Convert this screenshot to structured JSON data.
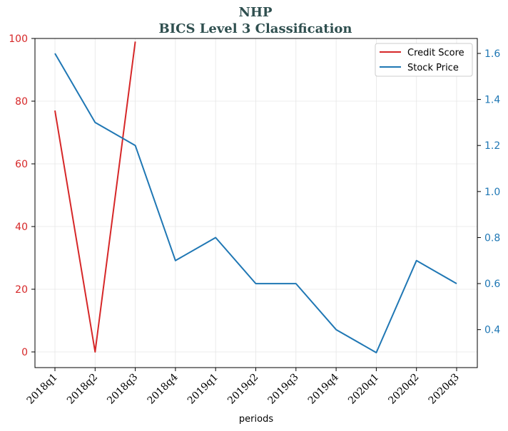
{
  "chart_data": {
    "type": "line",
    "title": "NHP",
    "subtitle": "BICS Level 3 Classification",
    "xlabel": "periods",
    "categories": [
      "2018q1",
      "2018q2",
      "2018q3",
      "2018q4",
      "2019q1",
      "2019q2",
      "2019q3",
      "2019q4",
      "2020q1",
      "2020q2",
      "2020q3"
    ],
    "series": [
      {
        "name": "Credit Score",
        "axis": "left",
        "color": "#d62728",
        "values": [
          77,
          0,
          99,
          null,
          null,
          null,
          null,
          null,
          null,
          null,
          null
        ]
      },
      {
        "name": "Stock Price",
        "axis": "right",
        "color": "#1f77b4",
        "values": [
          1.6,
          1.3,
          1.2,
          0.7,
          0.8,
          0.6,
          0.6,
          0.4,
          0.3,
          0.7,
          0.6
        ]
      }
    ],
    "y_left": {
      "ylim": [
        -5,
        100
      ],
      "ticks": [
        0,
        20,
        40,
        60,
        80,
        100
      ],
      "color": "#d62728"
    },
    "y_right": {
      "ylim": [
        0.235,
        1.665
      ],
      "ticks": [
        "0.4",
        "0.6",
        "0.8",
        "1.0",
        "1.2",
        "1.4",
        "1.6"
      ],
      "color": "#1f77b4"
    },
    "grid": true,
    "legend": "top-right"
  }
}
